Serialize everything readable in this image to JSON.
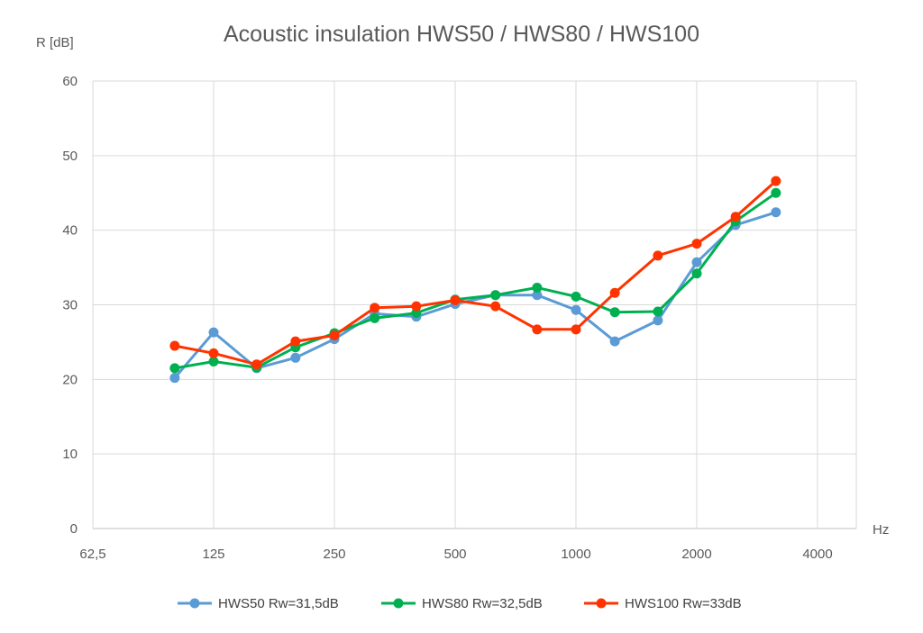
{
  "chart_data": {
    "type": "line",
    "title": "Acoustic insulation HWS50 / HWS80 / HWS100",
    "ylabel": "R [dB]",
    "xlabel": "Hz",
    "ylim": [
      0,
      60
    ],
    "yticks": [
      0,
      10,
      20,
      30,
      40,
      50,
      60
    ],
    "x_scale": "log2",
    "xlim": [
      62.5,
      4000
    ],
    "xticks": [
      62.5,
      125,
      250,
      500,
      1000,
      2000,
      4000
    ],
    "xtick_labels": [
      "62,5",
      "125",
      "250",
      "500",
      "1000",
      "2000",
      "4000"
    ],
    "x": [
      100,
      125,
      160,
      200,
      250,
      315,
      400,
      500,
      630,
      800,
      1000,
      1250,
      1600,
      2000,
      2500,
      3150
    ],
    "grid": "vertical-and-horizontal",
    "legend_position": "bottom",
    "series": [
      {
        "name": "HWS50 Rw=31,5dB",
        "color": "#5b9bd5",
        "values": [
          20.2,
          26.3,
          21.5,
          22.9,
          25.4,
          28.8,
          28.4,
          30.1,
          31.3,
          31.3,
          29.3,
          25.1,
          27.9,
          35.7,
          40.7,
          42.4
        ]
      },
      {
        "name": "HWS80 Rw=32,5dB",
        "color": "#00b050",
        "values": [
          21.5,
          22.4,
          21.6,
          24.3,
          26.2,
          28.2,
          28.9,
          30.7,
          31.3,
          32.3,
          31.1,
          29.0,
          29.1,
          34.2,
          41.2,
          45.0
        ]
      },
      {
        "name": "HWS100 Rw=33dB",
        "color": "#ff3300",
        "values": [
          24.5,
          23.5,
          22.0,
          25.1,
          25.9,
          29.6,
          29.8,
          30.6,
          29.8,
          26.7,
          26.7,
          31.6,
          36.6,
          38.2,
          41.8,
          46.6
        ]
      }
    ]
  }
}
